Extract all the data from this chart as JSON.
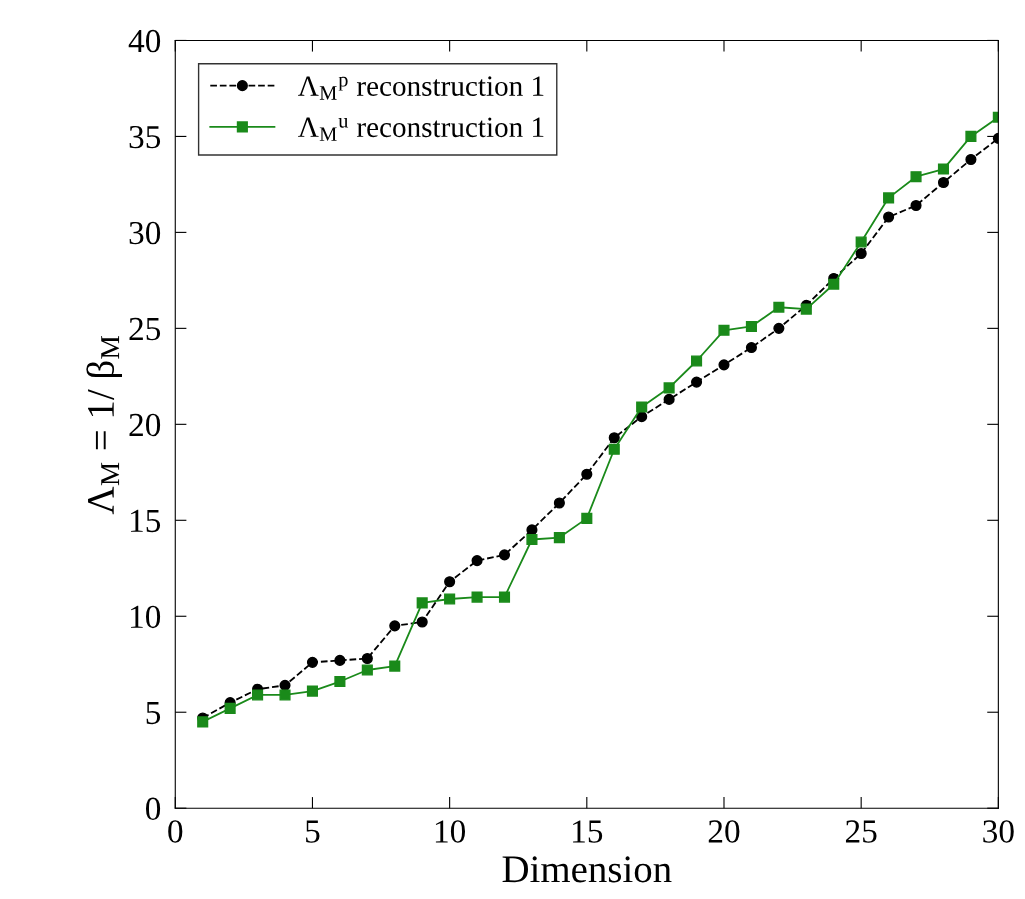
{
  "chart_data": {
    "type": "line",
    "xlabel": "Dimension",
    "ylabel": "Λ$_{M}$ = 1/ β$_{M}$",
    "x": [
      1,
      2,
      3,
      4,
      5,
      6,
      7,
      8,
      9,
      10,
      11,
      12,
      13,
      14,
      15,
      16,
      17,
      18,
      19,
      20,
      21,
      22,
      23,
      24,
      25,
      26,
      27,
      28,
      29,
      30
    ],
    "series": [
      {
        "name": "Λ$_{M}$$^{p}$ reconstruction 1",
        "color": "#000000",
        "marker": "circle",
        "line_style": "dashed",
        "values": [
          4.7,
          5.5,
          6.2,
          6.4,
          7.6,
          7.7,
          7.8,
          9.5,
          9.7,
          11.8,
          12.9,
          13.2,
          14.5,
          15.9,
          17.4,
          19.3,
          20.4,
          21.3,
          22.2,
          23.1,
          24.0,
          25.0,
          26.2,
          27.6,
          28.9,
          30.8,
          31.4,
          32.6,
          33.8,
          34.9
        ]
      },
      {
        "name": "Λ$_{M}$$^{u}$ reconstruction 1",
        "color": "#1a8a1a",
        "marker": "square",
        "line_style": "solid",
        "values": [
          4.5,
          5.2,
          5.9,
          5.9,
          6.1,
          6.6,
          7.2,
          7.4,
          10.7,
          10.9,
          11.0,
          11.0,
          14.0,
          14.1,
          15.1,
          18.7,
          20.9,
          21.9,
          23.3,
          24.9,
          25.1,
          26.1,
          26.0,
          27.3,
          29.5,
          31.8,
          32.9,
          33.3,
          35.0,
          36.0
        ]
      }
    ],
    "xlim": [
      0,
      30
    ],
    "xticks": [
      0,
      5,
      10,
      15,
      20,
      25,
      30
    ],
    "ylim": [
      0,
      40
    ],
    "yticks": [
      0,
      5,
      10,
      15,
      20,
      25,
      30,
      35,
      40
    ],
    "grid": false,
    "legend": "top left"
  }
}
